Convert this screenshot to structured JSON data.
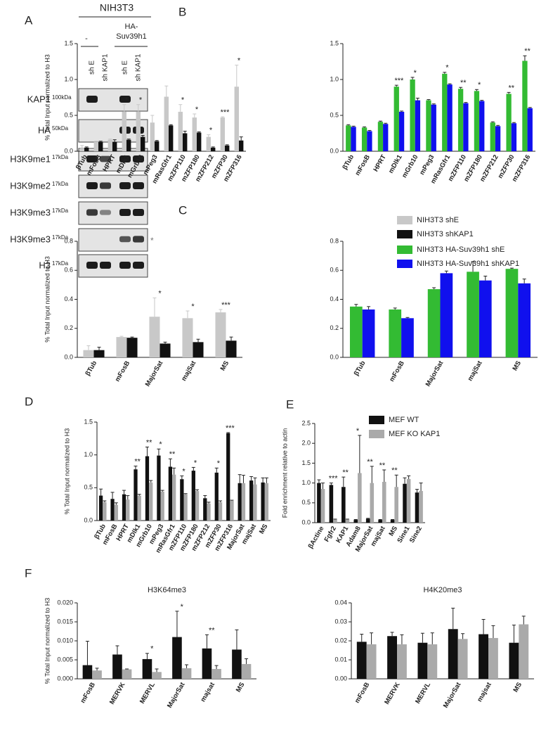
{
  "panels": [
    "A",
    "B",
    "C",
    "D",
    "E",
    "F"
  ],
  "blot": {
    "header": "NIH3T3",
    "groups": [
      "-",
      [
        "HA-",
        "Suv39h1"
      ]
    ],
    "lanes": [
      "sh E",
      "sh KAP1",
      "sh E",
      "sh KAP1"
    ],
    "rows": [
      {
        "label": "KAP1",
        "size": "100kDa"
      },
      {
        "label": "HA",
        "size": "50kDa"
      },
      {
        "label": "H3K9me1",
        "size": "17kDa"
      },
      {
        "label": "H3K9me2",
        "size": "17kDa"
      },
      {
        "label": "H3K9me3",
        "size": "17kDa"
      },
      {
        "label": "H3K9me3",
        "size": "17kDa",
        "note": "*"
      },
      {
        "label": "H3",
        "size": "17kDa"
      }
    ]
  },
  "chart_data": [
    {
      "type": "bar",
      "ylabel": "% Total Input normalized to H3",
      "categories": [
        "βTub",
        "mFosB",
        "HPRT",
        "mDlk1",
        "mGrb10",
        "mPeg3",
        "mRasGfr1",
        "mZFP110",
        "mZFP180",
        "mZFP212",
        "mZFP30",
        "mZFP316"
      ],
      "series": [
        {
          "name": "NIH3T3 shE",
          "color": "#c8c8c8",
          "values": [
            0.04,
            0.13,
            0.16,
            0.55,
            0.55,
            0.4,
            0.76,
            0.55,
            0.47,
            0.2,
            0.47,
            0.9
          ],
          "errors": [
            0.04,
            0.01,
            0.01,
            0.1,
            0.1,
            0.1,
            0.15,
            0.1,
            0.05,
            0.03,
            0.01,
            0.3
          ]
        },
        {
          "name": "NIH3T3 shKAP1",
          "color": "#111111",
          "values": [
            0.05,
            0.13,
            0.13,
            0.16,
            0.2,
            0.14,
            0.36,
            0.25,
            0.26,
            0.05,
            0.08,
            0.15
          ],
          "errors": [
            0.01,
            0.01,
            0.03,
            0.01,
            0.02,
            0.01,
            0.01,
            0.03,
            0.01,
            0.01,
            0.01,
            0.05
          ]
        }
      ],
      "annotations": [
        null,
        null,
        null,
        "*",
        "*",
        null,
        null,
        "*",
        "*",
        "*",
        "***",
        "*"
      ],
      "ylim": [
        0,
        1.5
      ],
      "yticks": [
        {
          "value": 0,
          "label": "0.0"
        },
        0.5,
        {
          "value": 1,
          "label": "1.0"
        },
        1.5
      ]
    },
    {
      "type": "bar",
      "categories": [
        "βTub",
        "mFosB",
        "HPRT",
        "mDlk1",
        "mGrb10",
        "mPeg3",
        "mRasGfr1",
        "mZFP110",
        "mZFP180",
        "mZFP212",
        "mZFP30",
        "mZFP316"
      ],
      "series": [
        {
          "name": "NIH3T3 HA-Suv39h1 shE",
          "color": "#33bb33",
          "values": [
            0.36,
            0.33,
            0.41,
            0.9,
            1.0,
            0.71,
            1.08,
            0.87,
            0.84,
            0.4,
            0.8,
            1.26
          ],
          "errors": [
            0.01,
            0.01,
            0.01,
            0.02,
            0.03,
            0.01,
            0.02,
            0.02,
            0.02,
            0.01,
            0.02,
            0.07
          ]
        },
        {
          "name": "NIH3T3 HA-Suv39h1 shKAP1",
          "color": "#1010ee",
          "values": [
            0.34,
            0.28,
            0.38,
            0.55,
            0.71,
            0.65,
            0.93,
            0.67,
            0.7,
            0.35,
            0.39,
            0.6
          ],
          "errors": [
            0.01,
            0.01,
            0.01,
            0.01,
            0.03,
            0.01,
            0.01,
            0.01,
            0.01,
            0.01,
            0.01,
            0.01
          ]
        }
      ],
      "annotations": [
        null,
        null,
        null,
        "***",
        "*",
        null,
        "*",
        "**",
        "*",
        null,
        "**",
        "**"
      ],
      "ylim": [
        0,
        1.5
      ],
      "yticks": [
        {
          "value": 0,
          "label": "0.0"
        },
        0.5,
        {
          "value": 1,
          "label": "1.0"
        },
        1.5
      ]
    },
    {
      "type": "bar",
      "ylabel": "% Total Input normalized to H3",
      "categories": [
        "βTub",
        "mFosB",
        "MajorSat",
        "majSat",
        "MS"
      ],
      "series": [
        {
          "color": "#c8c8c8",
          "values": [
            0.05,
            0.14,
            0.28,
            0.27,
            0.31
          ],
          "errors": [
            0.03,
            0.005,
            0.13,
            0.05,
            0.02
          ]
        },
        {
          "color": "#111111",
          "values": [
            0.05,
            0.135,
            0.095,
            0.105,
            0.115
          ],
          "errors": [
            0.02,
            0.005,
            0.01,
            0.02,
            0.025
          ]
        }
      ],
      "annotations": [
        null,
        null,
        "*",
        "*",
        "***"
      ],
      "ylim": [
        0,
        0.8
      ],
      "yticks": [
        {
          "value": 0,
          "label": "0.0"
        },
        0.2,
        0.4,
        0.6,
        0.8
      ]
    },
    {
      "type": "bar",
      "categories": [
        "βTub",
        "mFosB",
        "MajorSat",
        "majSat",
        "MS"
      ],
      "series": [
        {
          "color": "#33bb33",
          "values": [
            0.35,
            0.33,
            0.47,
            0.59,
            0.61
          ],
          "errors": [
            0.015,
            0.01,
            0.01,
            0.07,
            0.005
          ]
        },
        {
          "color": "#1010ee",
          "values": [
            0.33,
            0.27,
            0.58,
            0.53,
            0.51
          ],
          "errors": [
            0.02,
            0.005,
            0.015,
            0.03,
            0.03
          ]
        }
      ],
      "ylim": [
        0,
        0.8
      ],
      "yticks": [
        {
          "value": 0,
          "label": "0.0"
        },
        0.2,
        0.4,
        0.6,
        0.8
      ]
    },
    {
      "type": "bar",
      "ylabel": "% Total Input normalized to H3",
      "categories": [
        "βTub",
        "mFosB",
        "HPRT",
        "mDlk1",
        "mGrb10",
        "mPeg3",
        "mRasGfr1",
        "mZFP110",
        "mZFP180",
        "mZFP212",
        "mZFP30",
        "mZFP316",
        "MajorSat",
        "majSat",
        "MS"
      ],
      "series": [
        {
          "color": "#111111",
          "values": [
            0.38,
            0.33,
            0.4,
            0.78,
            0.98,
            0.99,
            0.82,
            0.63,
            0.76,
            0.34,
            0.73,
            1.33,
            0.57,
            0.61,
            0.58
          ],
          "errors": [
            0.1,
            0.1,
            0.06,
            0.05,
            0.14,
            0.1,
            0.12,
            0.05,
            0.05,
            0.04,
            0.07,
            0.01,
            0.13,
            0.06,
            0.07
          ]
        },
        {
          "color": "#aaaaaa",
          "values": [
            0.28,
            0.24,
            0.32,
            0.38,
            0.58,
            0.44,
            0.7,
            0.4,
            0.45,
            0.26,
            0.28,
            0.3,
            0.57,
            0.55,
            0.57
          ],
          "errors": [
            0.02,
            0.03,
            0.06,
            0.02,
            0.03,
            0.02,
            0.1,
            0.01,
            0.02,
            0.02,
            0.02,
            0.01,
            0.12,
            0.1,
            0.08
          ]
        }
      ],
      "annotations": [
        null,
        null,
        null,
        "**",
        "**",
        "*",
        "**",
        "*",
        "*",
        null,
        "*",
        "***",
        null,
        null,
        null
      ],
      "ylim": [
        0,
        1.5
      ],
      "yticks": [
        {
          "value": 0,
          "label": "0.0"
        },
        0.5,
        {
          "value": 1,
          "label": "1.0"
        },
        1.5
      ]
    },
    {
      "type": "bar",
      "ylabel": "Fold enrichment relative to actin",
      "categories": [
        "βActine",
        "Fgfr2",
        "KAP1",
        "Adam8",
        "MajorSat",
        "majSat",
        "MS",
        "Sine1",
        "Sine2"
      ],
      "series": [
        {
          "name": "MEF WT",
          "color": "#111111",
          "values": [
            1.0,
            0.95,
            0.9,
            0.07,
            0.1,
            0.07,
            0.07,
            0.98,
            0.76
          ],
          "errors": [
            0.08,
            0.05,
            0.25,
            0.01,
            0.01,
            0.01,
            0.01,
            0.15,
            0.08
          ]
        },
        {
          "name": "MEF KO KAP1",
          "color": "#aaaaaa",
          "values": [
            0.85,
            0.08,
            0.08,
            1.25,
            1.0,
            1.03,
            0.9,
            1.1,
            0.8
          ],
          "errors": [
            0.15,
            0.01,
            0.01,
            0.95,
            0.42,
            0.3,
            0.3,
            0.08,
            0.2
          ]
        }
      ],
      "annotations": [
        null,
        "***",
        "**",
        "*",
        "**",
        "**",
        "**",
        null,
        null
      ],
      "ylim": [
        0,
        2.5
      ],
      "yticks": [
        {
          "value": 0,
          "label": "0.0"
        },
        0.5,
        {
          "value": 1,
          "label": "1.0"
        },
        1.5,
        {
          "value": 2,
          "label": "2.0"
        },
        2.5
      ]
    },
    {
      "type": "bar",
      "title": "H3K64me3",
      "ylabel": "% Total Input normalized to H3",
      "categories": [
        "mFosB",
        "MERVK",
        "MERVL",
        "MajorSat",
        "majsat",
        "MS"
      ],
      "series": [
        {
          "color": "#111111",
          "values": [
            0.0036,
            0.0064,
            0.0052,
            0.011,
            0.008,
            0.0077
          ],
          "errors": [
            0.0063,
            0.0023,
            0.0015,
            0.0068,
            0.0036,
            0.0052
          ]
        },
        {
          "color": "#aaaaaa",
          "values": [
            0.0022,
            0.0025,
            0.0018,
            0.0028,
            0.0026,
            0.0039
          ],
          "errors": [
            0.0006,
            0.0001,
            0.0008,
            0.0009,
            0.0009,
            0.0014
          ]
        }
      ],
      "annotations": [
        null,
        null,
        "*",
        "*",
        "**",
        null
      ],
      "ylim": [
        0,
        0.02
      ],
      "yticks": [
        {
          "value": 0,
          "label": "0.000"
        },
        {
          "value": 0.005,
          "label": "0.005"
        },
        {
          "value": 0.01,
          "label": "0.010"
        },
        {
          "value": 0.015,
          "label": "0.015"
        },
        {
          "value": 0.02,
          "label": "0.020"
        }
      ]
    },
    {
      "type": "bar",
      "title": "H4K20me3",
      "categories": [
        "mFosB",
        "MERVK",
        "MERVL",
        "MajorSat",
        "majsat",
        "MS"
      ],
      "series": [
        {
          "color": "#111111",
          "values": [
            0.0195,
            0.0225,
            0.019,
            0.0262,
            0.0235,
            0.019
          ],
          "errors": [
            0.004,
            0.002,
            0.005,
            0.011,
            0.0078,
            0.0093
          ]
        },
        {
          "color": "#aaaaaa",
          "values": [
            0.0182,
            0.0182,
            0.0182,
            0.021,
            0.0215,
            0.0287
          ],
          "errors": [
            0.006,
            0.005,
            0.006,
            0.0028,
            0.0065,
            0.0043
          ]
        }
      ],
      "ylim": [
        0,
        0.04
      ],
      "yticks": [
        {
          "value": 0,
          "label": "0.00"
        },
        {
          "value": 0.01,
          "label": "0.01"
        },
        {
          "value": 0.02,
          "label": "0.02"
        },
        {
          "value": 0.03,
          "label": "0.03"
        },
        {
          "value": 0.04,
          "label": "0.04"
        }
      ]
    }
  ]
}
